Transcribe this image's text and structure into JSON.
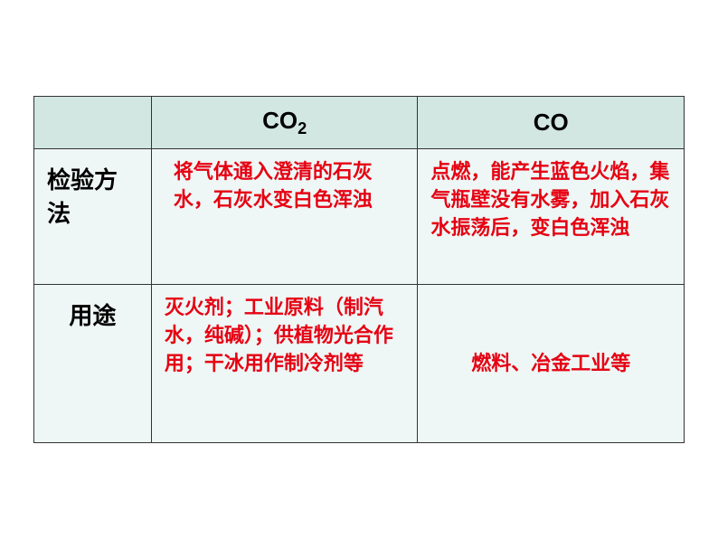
{
  "headers": {
    "blank": "",
    "co2_prefix": "CO",
    "co2_sub": "2",
    "co": "CO"
  },
  "rows": [
    {
      "label": "检验方法",
      "co2": "将气体通入澄清的石灰水，石灰水变白色浑浊",
      "co": "点燃，能产生蓝色火焰，集气瓶壁没有水雾，加入石灰水振荡后，变白色浑浊"
    },
    {
      "label": "用途",
      "co2": "灭火剂；工业原料（制汽水，纯碱）；供植物光合作用；干冰用作制冷剂等",
      "co": "燃料、冶金工业等"
    }
  ],
  "style": {
    "header_bg": "#d2e6e2",
    "body_bg": "#eef7f5",
    "content_color": "#e60012",
    "label_color": "#000000",
    "border_color": "#333333"
  }
}
